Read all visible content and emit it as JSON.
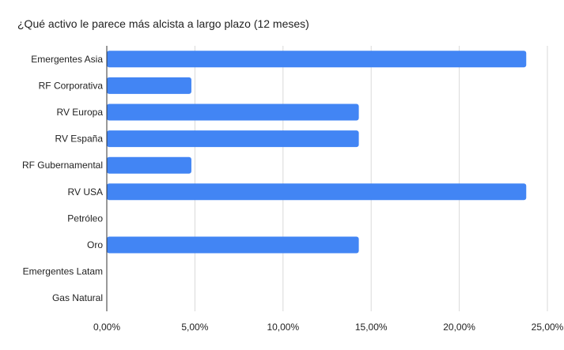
{
  "chart_data": {
    "type": "bar",
    "orientation": "horizontal",
    "title": "¿Qué activo le parece más alcista a largo plazo (12 meses)",
    "xlabel": "",
    "ylabel": "",
    "categories": [
      "Emergentes Asia",
      "RF Corporativa",
      "RV Europa",
      "RV España",
      "RF Gubernamental",
      "RV USA",
      "Petróleo",
      "Oro",
      "Emergentes Latam",
      "Gas Natural"
    ],
    "values": [
      23.8,
      4.8,
      14.3,
      14.3,
      4.8,
      23.8,
      0,
      14.3,
      0,
      0
    ],
    "xlim": [
      0,
      25
    ],
    "x_ticks": [
      0,
      5,
      10,
      15,
      20,
      25
    ],
    "x_tick_labels": [
      "0,00%",
      "5,00%",
      "10,00%",
      "15,00%",
      "20,00%",
      "25,00%"
    ],
    "grid": "vertical",
    "legend": "none",
    "bar_color": "#4285f4"
  }
}
